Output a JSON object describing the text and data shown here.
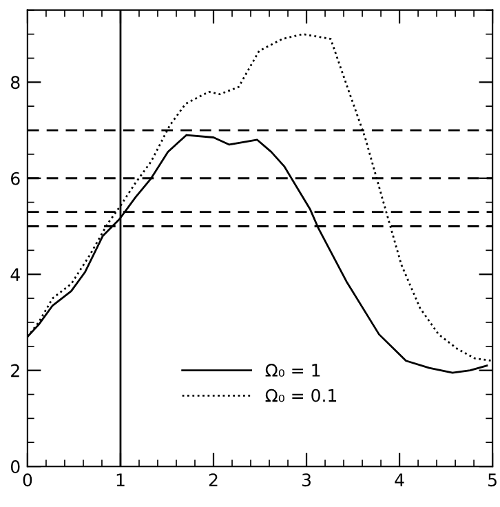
{
  "chart_data": {
    "type": "line",
    "x": [
      0,
      0.12,
      0.27,
      0.47,
      0.62,
      0.81,
      0.99,
      1.16,
      1.33,
      1.51,
      1.71,
      2.0,
      2.17,
      2.47,
      2.62,
      2.76,
      3.04,
      3.13,
      3.43,
      3.78,
      4.07,
      4.32,
      4.57,
      4.76,
      4.94
    ],
    "series": [
      {
        "name": "Ω₀ = 1",
        "color": "#000000",
        "line_style": "solid",
        "values": [
          2.7,
          2.95,
          3.35,
          3.65,
          4.05,
          4.8,
          5.15,
          5.6,
          6.0,
          6.55,
          6.9,
          6.85,
          6.7,
          6.8,
          6.55,
          6.25,
          5.35,
          4.95,
          3.85,
          2.75,
          2.2,
          2.05,
          1.95,
          2.0,
          2.1
        ]
      },
      {
        "name": "Ω₀ = 0.1",
        "color": "#000000",
        "line_style": "dotted",
        "x": [
          0,
          0.12,
          0.27,
          0.47,
          0.67,
          0.86,
          0.99,
          1.16,
          1.33,
          1.53,
          1.7,
          1.95,
          2.07,
          2.27,
          2.49,
          2.74,
          2.96,
          3.26,
          3.43,
          3.63,
          3.82,
          4.02,
          4.22,
          4.42,
          4.62,
          4.81,
          5.0
        ],
        "values": [
          2.7,
          3.0,
          3.5,
          3.8,
          4.4,
          5.05,
          5.4,
          5.9,
          6.35,
          7.1,
          7.55,
          7.8,
          7.75,
          7.9,
          8.65,
          8.9,
          9.0,
          8.9,
          7.95,
          6.85,
          5.55,
          4.2,
          3.3,
          2.75,
          2.45,
          2.25,
          2.2
        ]
      }
    ],
    "xlim": [
      0,
      5
    ],
    "ylim": [
      0,
      9.5
    ],
    "xticks": [
      0,
      1,
      2,
      3,
      4,
      5
    ],
    "yticks": [
      0,
      2,
      4,
      6,
      8
    ],
    "ref_lines": [
      {
        "axis": "y",
        "value": 7,
        "line_style": "dashed",
        "color": "#000000"
      },
      {
        "axis": "y",
        "value": 6,
        "line_style": "dashed",
        "color": "#000000"
      },
      {
        "axis": "y",
        "value": 5.3,
        "line_style": "dashed",
        "color": "#000000"
      },
      {
        "axis": "y",
        "value": 5,
        "line_style": "dashed",
        "color": "#000000"
      },
      {
        "axis": "x",
        "value": 1,
        "line_style": "solid",
        "color": "#000000"
      }
    ],
    "legend": "bottom",
    "grid": false,
    "marker": "none"
  }
}
